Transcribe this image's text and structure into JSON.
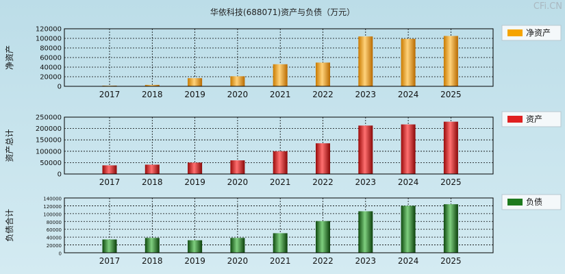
{
  "header": {
    "title": "华依科技(688071)资产与负债（万元）",
    "watermark": "CFi.CN"
  },
  "colors": {
    "net_assets": "#f5a400",
    "assets": "#e02020",
    "liabilities": "#1e7a1e"
  },
  "chart_data": [
    {
      "type": "bar",
      "title": "",
      "ylabel": "净资产",
      "legend": "净资产",
      "categories": [
        "2017",
        "2018",
        "2019",
        "2020",
        "2021",
        "2022",
        "2023",
        "2024",
        "2025"
      ],
      "values": [
        900,
        3000,
        17000,
        21000,
        46000,
        49500,
        104000,
        99000,
        105000
      ],
      "ylim": [
        0,
        120000
      ],
      "yticks": [
        0,
        20000,
        40000,
        60000,
        80000,
        100000,
        120000
      ],
      "tick_labels": [
        "0",
        "20000",
        "40000",
        "60000",
        "80000",
        "100000",
        "120000"
      ]
    },
    {
      "type": "bar",
      "title": "",
      "ylabel": "资产总计",
      "legend": "资产",
      "categories": [
        "2017",
        "2018",
        "2019",
        "2020",
        "2021",
        "2022",
        "2023",
        "2024",
        "2025"
      ],
      "values": [
        38000,
        41000,
        50000,
        60000,
        100000,
        135000,
        213000,
        218000,
        230000
      ],
      "ylim": [
        0,
        250000
      ],
      "yticks": [
        0,
        50000,
        100000,
        150000,
        200000,
        250000
      ],
      "tick_labels": [
        "0",
        "50000",
        "100000",
        "150000",
        "200000",
        "250000"
      ]
    },
    {
      "type": "bar",
      "title": "",
      "ylabel": "负债合计",
      "legend": "负债",
      "categories": [
        "2017",
        "2018",
        "2019",
        "2020",
        "2021",
        "2022",
        "2023",
        "2024",
        "2025"
      ],
      "values": [
        34000,
        38000,
        32000,
        38000,
        50000,
        81000,
        106000,
        120000,
        124000
      ],
      "ylim": [
        0,
        140000
      ],
      "yticks": [
        0,
        20000,
        40000,
        60000,
        80000,
        100000,
        120000,
        140000
      ],
      "tick_labels": [
        "0",
        "20000",
        "40000",
        "60000",
        "80000",
        "100000",
        "120000",
        "140000"
      ]
    }
  ]
}
